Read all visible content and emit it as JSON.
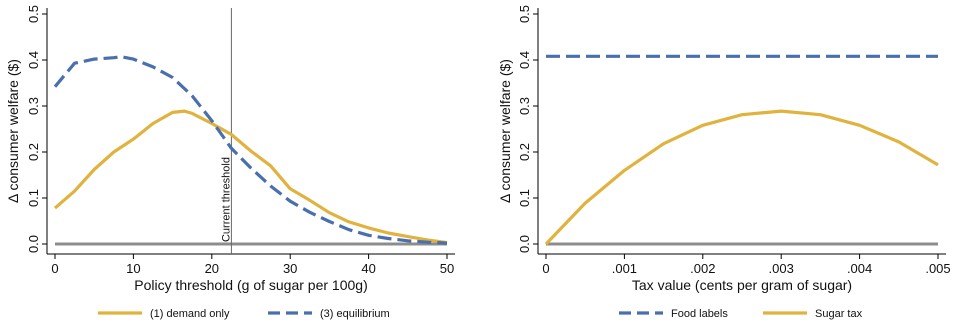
{
  "chart_data": [
    {
      "type": "line",
      "xlabel": "Policy threshold (g of sugar per 100g)",
      "ylabel": "Δ consumer welfare ($)",
      "xlim": [
        0,
        50
      ],
      "ylim": [
        0,
        0.5
      ],
      "xticks": [
        0,
        10,
        20,
        30,
        40,
        50
      ],
      "xtick_labels": [
        "0",
        "10",
        "20",
        "30",
        "40",
        "50"
      ],
      "yticks": [
        0,
        0.1,
        0.2,
        0.3,
        0.4,
        0.5
      ],
      "ytick_labels": [
        "0.0",
        "0.1",
        "0.2",
        "0.3",
        "0.4",
        "0.5"
      ],
      "grid": false,
      "legend_position": "bottom",
      "baseline": {
        "y": 0,
        "color": "#8c8c8c"
      },
      "vline": {
        "x": 22.5,
        "label": "Current threshold",
        "color": "#666666"
      },
      "series": [
        {
          "name": "(1) demand only",
          "color": "#e0b33f",
          "dash": "solid",
          "x": [
            0,
            2.5,
            5,
            7.5,
            10,
            12.5,
            15,
            16.5,
            17.5,
            20,
            22.5,
            25,
            27.5,
            30,
            32.5,
            35,
            37.5,
            40,
            42.5,
            45,
            47.5,
            50
          ],
          "values": [
            0.078,
            0.115,
            0.162,
            0.2,
            0.228,
            0.262,
            0.286,
            0.289,
            0.284,
            0.262,
            0.238,
            0.202,
            0.17,
            0.12,
            0.095,
            0.068,
            0.048,
            0.035,
            0.024,
            0.016,
            0.009,
            0.003
          ]
        },
        {
          "name": "(3) equilibrium",
          "color": "#4a6fad",
          "dash": "dashed",
          "x": [
            0,
            2.5,
            5,
            7.5,
            8.5,
            10,
            12.5,
            15,
            17.5,
            20,
            22.5,
            25,
            27.5,
            30,
            32.5,
            35,
            37.5,
            40,
            42.5,
            45,
            47.5,
            50
          ],
          "values": [
            0.342,
            0.393,
            0.402,
            0.405,
            0.407,
            0.402,
            0.385,
            0.362,
            0.322,
            0.268,
            0.208,
            0.165,
            0.126,
            0.093,
            0.069,
            0.049,
            0.031,
            0.019,
            0.012,
            0.007,
            0.004,
            0.002
          ]
        }
      ]
    },
    {
      "type": "line",
      "xlabel": "Tax value (cents per gram of sugar)",
      "ylabel": "Δ consumer welfare ($)",
      "xlim": [
        0,
        0.005
      ],
      "ylim": [
        0,
        0.5
      ],
      "xticks": [
        0,
        0.001,
        0.002,
        0.003,
        0.004,
        0.005
      ],
      "xtick_labels": [
        "0",
        ".001",
        ".002",
        ".003",
        ".004",
        ".005"
      ],
      "yticks": [
        0,
        0.1,
        0.2,
        0.3,
        0.4,
        0.5
      ],
      "ytick_labels": [
        "0.0",
        "0.1",
        "0.2",
        "0.3",
        "0.4",
        "0.5"
      ],
      "grid": false,
      "legend_position": "bottom",
      "baseline": {
        "y": 0,
        "color": "#8c8c8c"
      },
      "series": [
        {
          "name": "Food labels",
          "color": "#4a6fad",
          "dash": "dashed",
          "x": [
            0,
            0.005
          ],
          "values": [
            0.408,
            0.408
          ]
        },
        {
          "name": "Sugar tax",
          "color": "#e0b33f",
          "dash": "solid",
          "x": [
            0,
            0.0005,
            0.001,
            0.0015,
            0.002,
            0.0025,
            0.003,
            0.0035,
            0.004,
            0.0045,
            0.005
          ],
          "values": [
            0.0,
            0.089,
            0.16,
            0.218,
            0.258,
            0.281,
            0.289,
            0.281,
            0.258,
            0.222,
            0.172
          ]
        }
      ]
    }
  ]
}
